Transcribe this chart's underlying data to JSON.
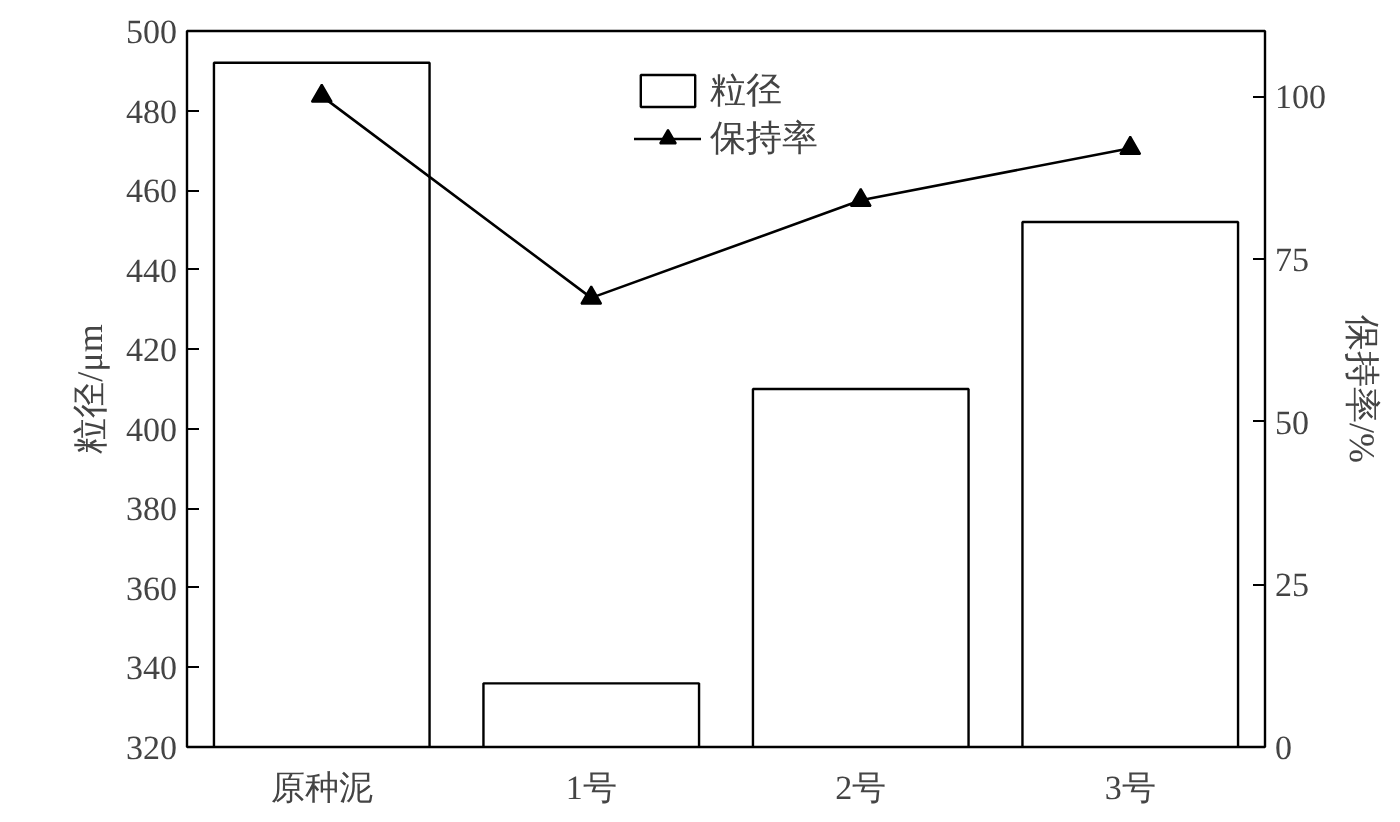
{
  "chart_data": {
    "type": "bar",
    "categories": [
      "原种泥",
      "1号",
      "2号",
      "3号"
    ],
    "ylabel": "粒径/μm",
    "y2label": "保持率/%",
    "ylim": [
      320,
      500
    ],
    "yticks": [
      320,
      340,
      360,
      380,
      400,
      420,
      440,
      460,
      480,
      500
    ],
    "y2lim": [
      0,
      110
    ],
    "y2ticks": [
      0,
      25,
      50,
      75,
      100
    ],
    "series": [
      {
        "name": "粒径",
        "color": "#ffffff",
        "values": [
          492,
          336,
          410,
          452
        ]
      },
      {
        "name": "保持率",
        "type": "line",
        "axis": "y2",
        "color": "#000000",
        "marker": "triangle",
        "values": [
          100,
          69,
          84,
          92
        ]
      }
    ],
    "legend": "top",
    "grid": false
  }
}
